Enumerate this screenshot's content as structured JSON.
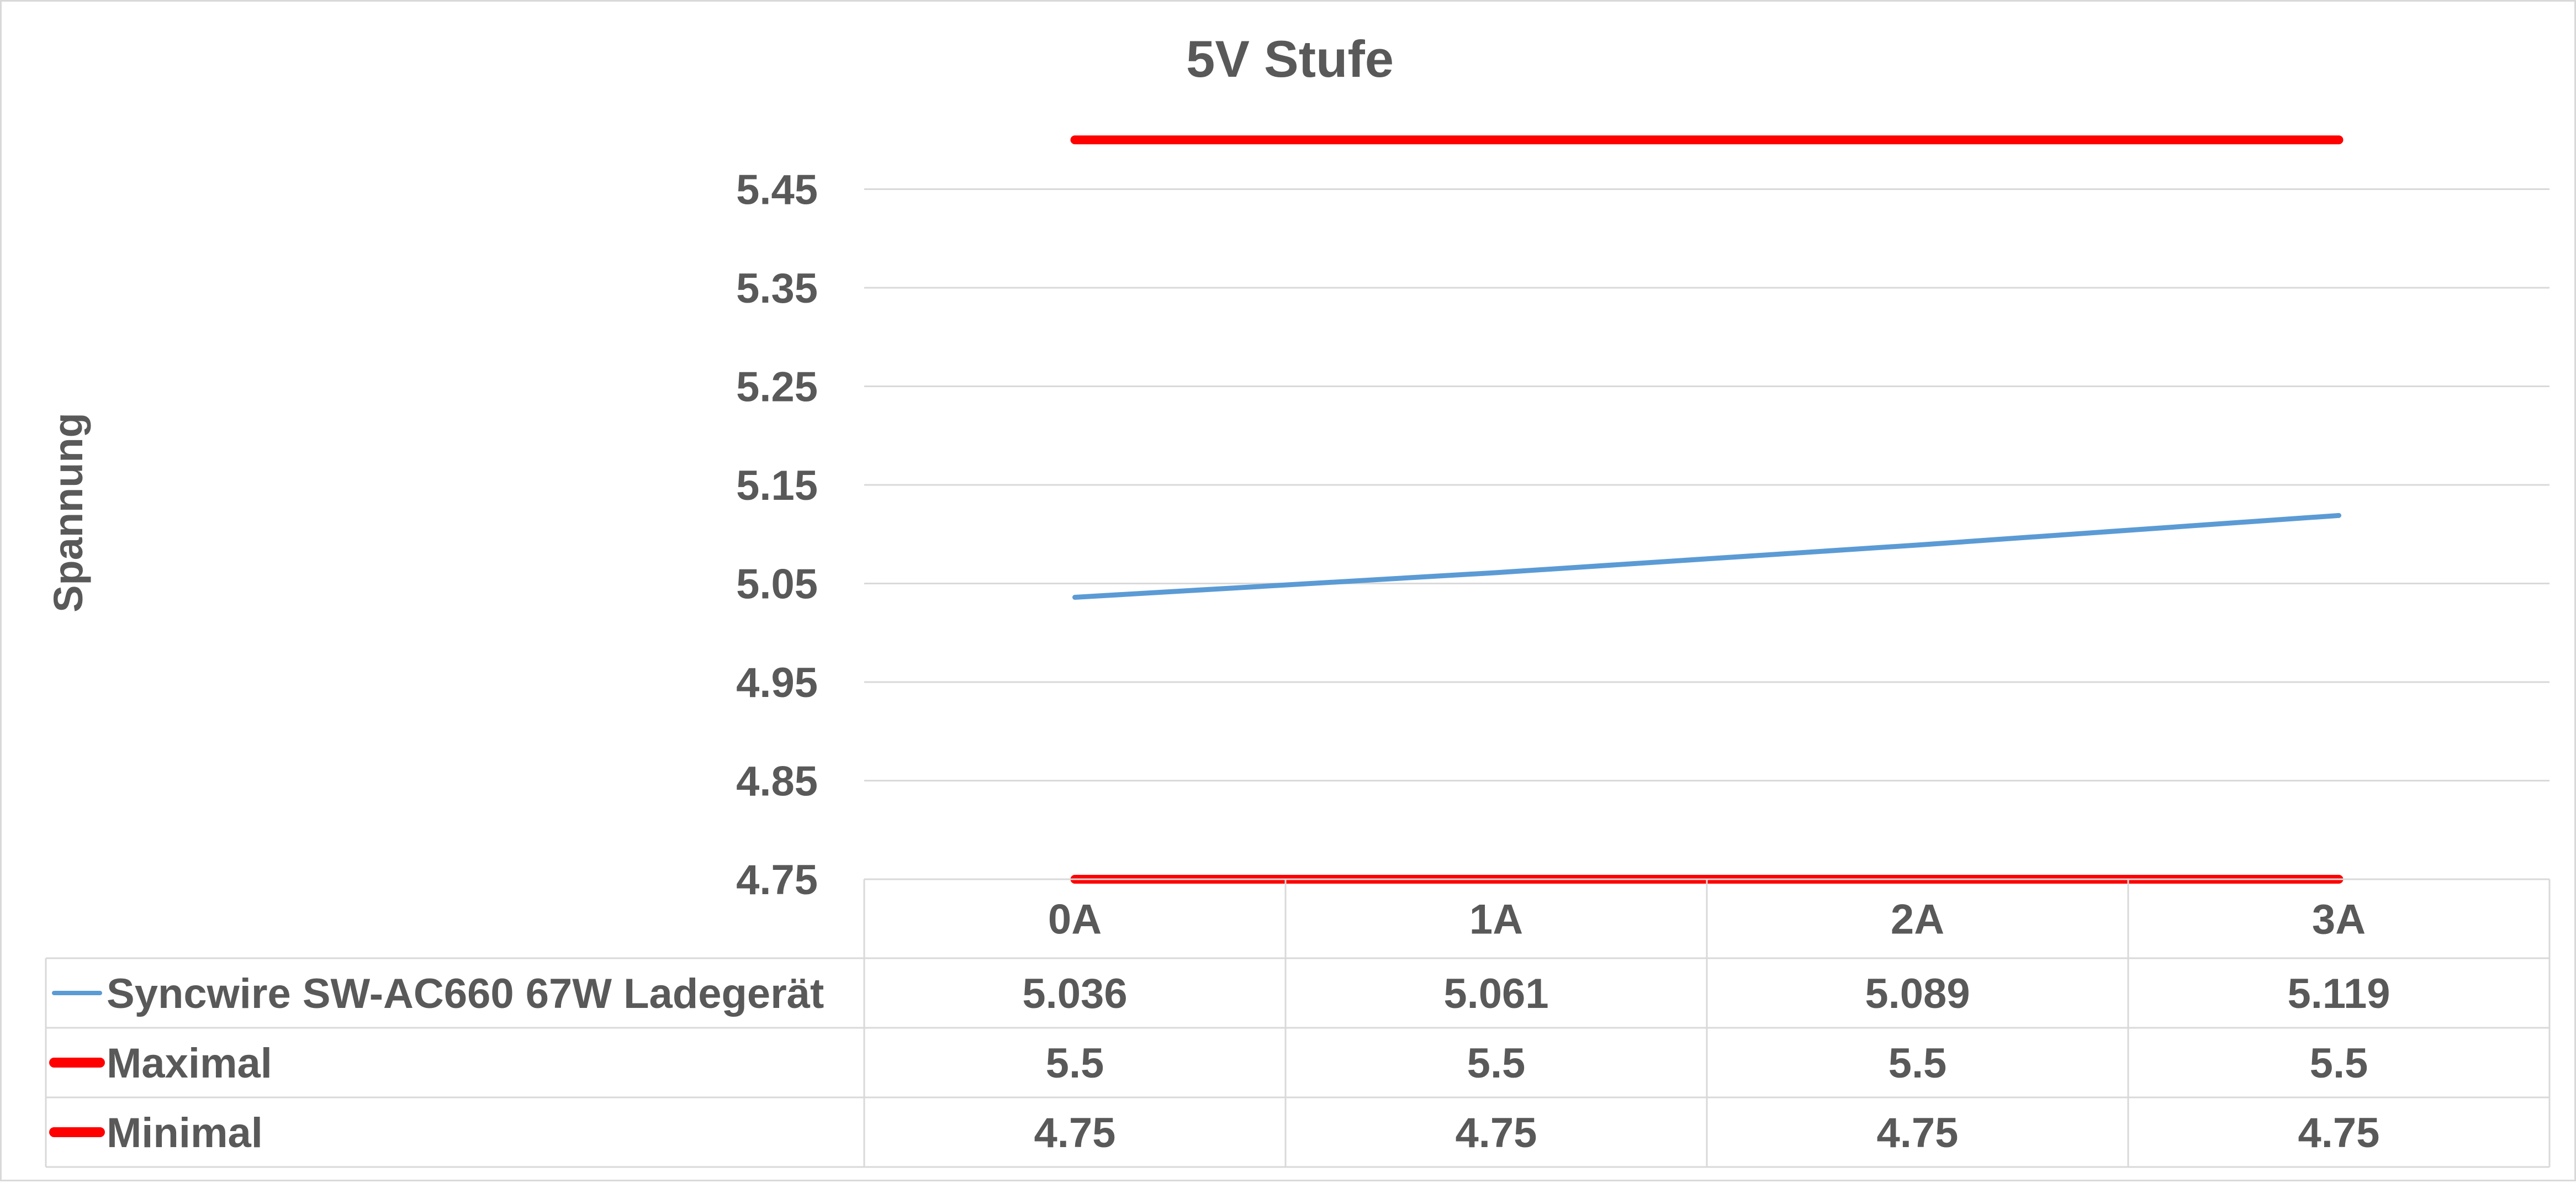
{
  "chart_data": {
    "type": "line",
    "title": "5V Stufe",
    "xlabel": "",
    "ylabel": "Spannung",
    "categories": [
      "0A",
      "1A",
      "2A",
      "3A"
    ],
    "y_ticks": [
      "5.45",
      "5.35",
      "5.25",
      "5.15",
      "5.05",
      "4.95",
      "4.85",
      "4.75"
    ],
    "ylim": [
      4.75,
      5.5
    ],
    "grid": true,
    "legend": "data-table-below",
    "series": [
      {
        "name": "Syncwire SW-AC660 67W Ladegerät",
        "color": "#5b9bd5",
        "width": "thin",
        "values": [
          5.036,
          5.061,
          5.089,
          5.119
        ],
        "labels": [
          "5.036",
          "5.061",
          "5.089",
          "5.119"
        ]
      },
      {
        "name": "Maximal",
        "color": "#ff0000",
        "width": "thick",
        "values": [
          5.5,
          5.5,
          5.5,
          5.5
        ],
        "labels": [
          "5.5",
          "5.5",
          "5.5",
          "5.5"
        ]
      },
      {
        "name": "Minimal",
        "color": "#ff0000",
        "width": "thick",
        "values": [
          4.75,
          4.75,
          4.75,
          4.75
        ],
        "labels": [
          "4.75",
          "4.75",
          "4.75",
          "4.75"
        ]
      }
    ]
  }
}
